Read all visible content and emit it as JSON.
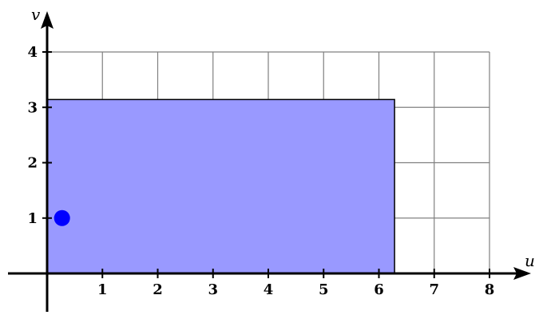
{
  "chart_data": {
    "type": "area",
    "xlabel": "u",
    "ylabel": "v",
    "xlim": [
      0,
      8
    ],
    "ylim": [
      0,
      4
    ],
    "x_ticks": [
      "1",
      "2",
      "3",
      "4",
      "5",
      "6",
      "7",
      "8"
    ],
    "y_ticks": [
      "1",
      "2",
      "3",
      "4"
    ],
    "grid": true,
    "region": {
      "u_min": 0,
      "u_max": 6.283,
      "v_min": 0,
      "v_max": 3.1416,
      "fill_color": "#9999ff",
      "edge_color": "#000000"
    },
    "points": [
      {
        "u": 0.27,
        "v": 1,
        "color": "#0000ff"
      }
    ],
    "grid_color": "#808080",
    "axis_color": "#000000"
  }
}
